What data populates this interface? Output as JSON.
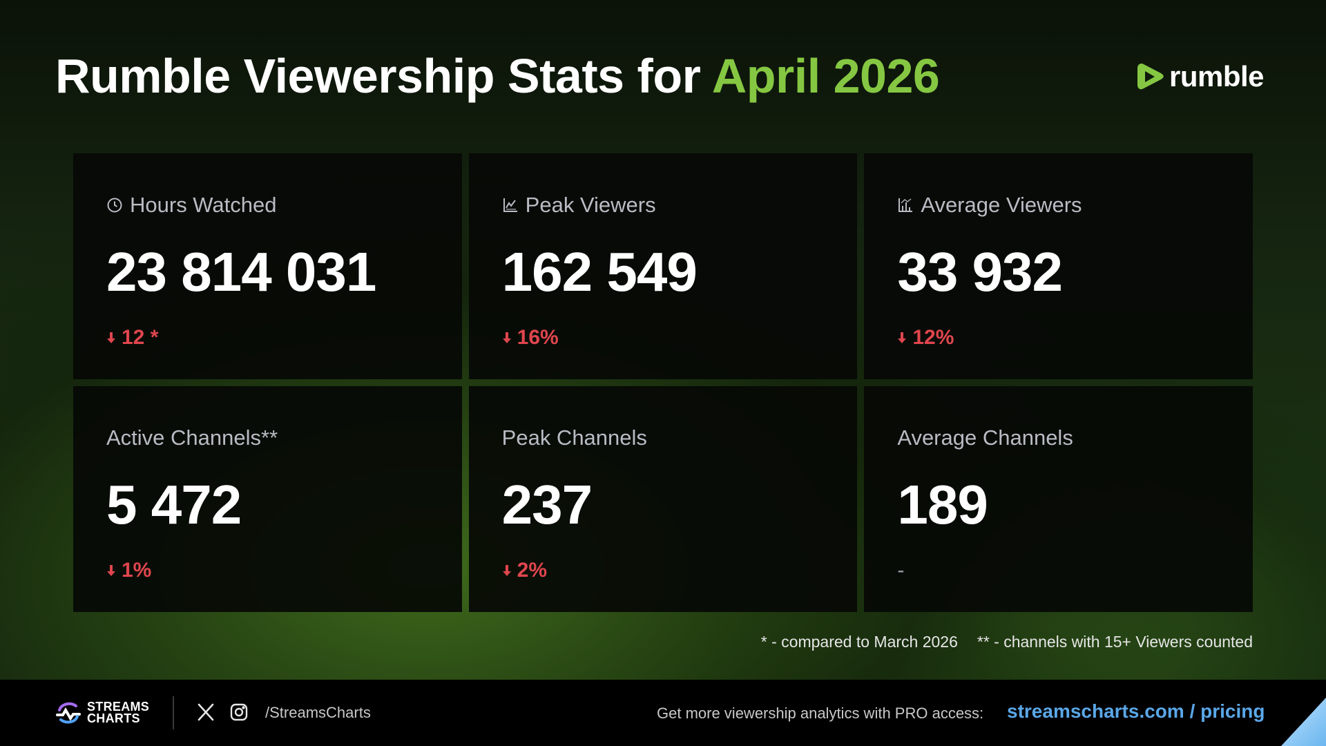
{
  "header": {
    "title_main": "Rumble Viewership Stats for",
    "title_highlight": "April 2026",
    "brand": "rumble"
  },
  "colors": {
    "accent_green": "#85c742",
    "decrease_red": "#e0464e",
    "link_blue": "#5aa7e8"
  },
  "stats": [
    {
      "label": "Hours Watched",
      "icon": "clock-icon",
      "value": "23 814 031",
      "change": "12 *",
      "direction": "down"
    },
    {
      "label": "Peak Viewers",
      "icon": "chart-line-icon",
      "value": "162 549",
      "change": "16%",
      "direction": "down"
    },
    {
      "label": "Average Viewers",
      "icon": "chart-bar-icon",
      "value": "33 932",
      "change": "12%",
      "direction": "down"
    },
    {
      "label": "Active Channels**",
      "icon": "",
      "value": "5 472",
      "change": "1%",
      "direction": "down"
    },
    {
      "label": "Peak Channels",
      "icon": "",
      "value": "237",
      "change": "2%",
      "direction": "down"
    },
    {
      "label": "Average Channels",
      "icon": "",
      "value": "189",
      "change": "-",
      "direction": "none"
    }
  ],
  "footnotes": {
    "note1": "* - compared to March 2026",
    "note2": "** - channels with 15+ Viewers counted"
  },
  "footer": {
    "logo_line1": "STREAMS",
    "logo_line2": "CHARTS",
    "social_icons": [
      "x-icon",
      "instagram-icon"
    ],
    "handle": "/StreamsCharts",
    "promo_text": "Get more viewership analytics with PRO access:",
    "promo_link": "streamscharts.com / pricing"
  }
}
